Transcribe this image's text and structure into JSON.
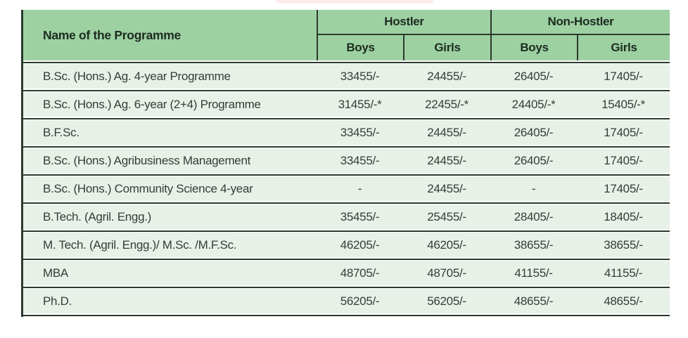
{
  "table": {
    "header": {
      "name_column": "Name of the Programme",
      "groups": [
        "Hostler",
        "Non-Hostler"
      ],
      "subcolumns": [
        "Boys",
        "Girls",
        "Boys",
        "Girls"
      ]
    },
    "rows": [
      {
        "name": "B.Sc. (Hons.) Ag. 4-year Programme",
        "hostler_boys": "33455/-",
        "hostler_girls": "24455/-",
        "non_hostler_boys": "26405/-",
        "non_hostler_girls": "17405/-"
      },
      {
        "name": "B.Sc. (Hons.) Ag. 6-year (2+4) Programme",
        "hostler_boys": "31455/-*",
        "hostler_girls": "22455/-*",
        "non_hostler_boys": "24405/-*",
        "non_hostler_girls": "15405/-*"
      },
      {
        "name": "B.F.Sc.",
        "hostler_boys": "33455/-",
        "hostler_girls": "24455/-",
        "non_hostler_boys": "26405/-",
        "non_hostler_girls": "17405/-"
      },
      {
        "name": "B.Sc. (Hons.) Agribusiness Management",
        "hostler_boys": "33455/-",
        "hostler_girls": "24455/-",
        "non_hostler_boys": "26405/-",
        "non_hostler_girls": "17405/-"
      },
      {
        "name": "B.Sc. (Hons.) Community Science 4-year",
        "hostler_boys": "-",
        "hostler_girls": "24455/-",
        "non_hostler_boys": "-",
        "non_hostler_girls": "17405/-"
      },
      {
        "name": "B.Tech. (Agril. Engg.)",
        "hostler_boys": "35455/-",
        "hostler_girls": "25455/-",
        "non_hostler_boys": "28405/-",
        "non_hostler_girls": "18405/-"
      },
      {
        "name": "M. Tech. (Agril. Engg.)/ M.Sc. /M.F.Sc.",
        "hostler_boys": "46205/-",
        "hostler_girls": "46205/-",
        "non_hostler_boys": "38655/-",
        "non_hostler_girls": "38655/-"
      },
      {
        "name": "MBA",
        "hostler_boys": "48705/-",
        "hostler_girls": "48705/-",
        "non_hostler_boys": "41155/-",
        "non_hostler_girls": "41155/-"
      },
      {
        "name": "Ph.D.",
        "hostler_boys": "56205/-",
        "hostler_girls": "56205/-",
        "non_hostler_boys": "48655/-",
        "non_hostler_girls": "48655/-"
      }
    ]
  },
  "colors": {
    "header_bg": "#9dd1a2",
    "row_bg": "#e7f1e8",
    "rule": "#2b3a2d",
    "header_text": "#1d2b20",
    "body_text": "#353d36"
  }
}
